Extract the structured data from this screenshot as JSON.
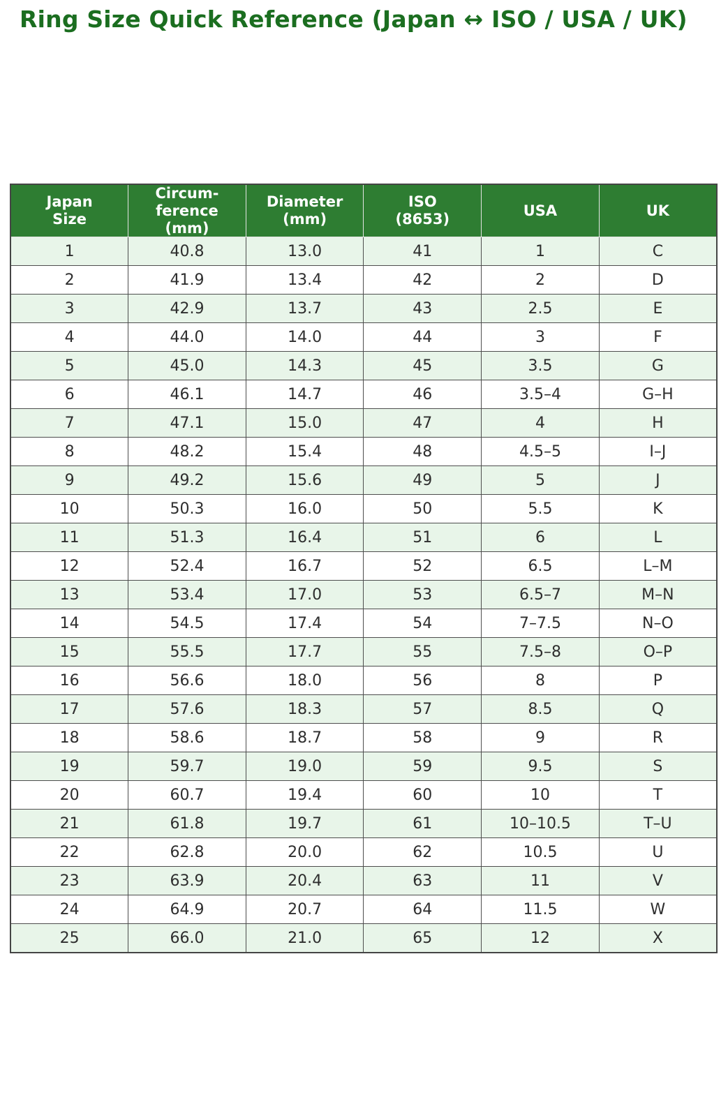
{
  "chart_data": {
    "type": "table",
    "title": "Ring Size Quick Reference (Japan ↔ ISO / USA / UK)",
    "columns": [
      "Japan Size",
      "Circumference (mm)",
      "Diameter (mm)",
      "ISO (8653)",
      "USA",
      "UK"
    ],
    "column_display": [
      "Japan\nSize",
      "Circum-\nference\n(mm)",
      "Diameter\n(mm)",
      "ISO\n(8653)",
      "USA",
      "UK"
    ],
    "rows": [
      [
        "1",
        "40.8",
        "13.0",
        "41",
        "1",
        "C"
      ],
      [
        "2",
        "41.9",
        "13.4",
        "42",
        "2",
        "D"
      ],
      [
        "3",
        "42.9",
        "13.7",
        "43",
        "2.5",
        "E"
      ],
      [
        "4",
        "44.0",
        "14.0",
        "44",
        "3",
        "F"
      ],
      [
        "5",
        "45.0",
        "14.3",
        "45",
        "3.5",
        "G"
      ],
      [
        "6",
        "46.1",
        "14.7",
        "46",
        "3.5–4",
        "G–H"
      ],
      [
        "7",
        "47.1",
        "15.0",
        "47",
        "4",
        "H"
      ],
      [
        "8",
        "48.2",
        "15.4",
        "48",
        "4.5–5",
        "I–J"
      ],
      [
        "9",
        "49.2",
        "15.6",
        "49",
        "5",
        "J"
      ],
      [
        "10",
        "50.3",
        "16.0",
        "50",
        "5.5",
        "K"
      ],
      [
        "11",
        "51.3",
        "16.4",
        "51",
        "6",
        "L"
      ],
      [
        "12",
        "52.4",
        "16.7",
        "52",
        "6.5",
        "L–M"
      ],
      [
        "13",
        "53.4",
        "17.0",
        "53",
        "6.5–7",
        "M–N"
      ],
      [
        "14",
        "54.5",
        "17.4",
        "54",
        "7–7.5",
        "N–O"
      ],
      [
        "15",
        "55.5",
        "17.7",
        "55",
        "7.5–8",
        "O–P"
      ],
      [
        "16",
        "56.6",
        "18.0",
        "56",
        "8",
        "P"
      ],
      [
        "17",
        "57.6",
        "18.3",
        "57",
        "8.5",
        "Q"
      ],
      [
        "18",
        "58.6",
        "18.7",
        "58",
        "9",
        "R"
      ],
      [
        "19",
        "59.7",
        "19.0",
        "59",
        "9.5",
        "S"
      ],
      [
        "20",
        "60.7",
        "19.4",
        "60",
        "10",
        "T"
      ],
      [
        "21",
        "61.8",
        "19.7",
        "61",
        "10–10.5",
        "T–U"
      ],
      [
        "22",
        "62.8",
        "20.0",
        "62",
        "10.5",
        "U"
      ],
      [
        "23",
        "63.9",
        "20.4",
        "63",
        "11",
        "V"
      ],
      [
        "24",
        "64.9",
        "20.7",
        "64",
        "11.5",
        "W"
      ],
      [
        "25",
        "66.0",
        "21.0",
        "65",
        "12",
        "X"
      ]
    ]
  },
  "colors": {
    "title_color": "#1b6e20",
    "header_bg": "#2e7d32",
    "header_text": "#ffffff",
    "row_alt_bg": "#e8f5e9",
    "row_bg": "#ffffff",
    "grid_line": "#4d4d4d"
  }
}
